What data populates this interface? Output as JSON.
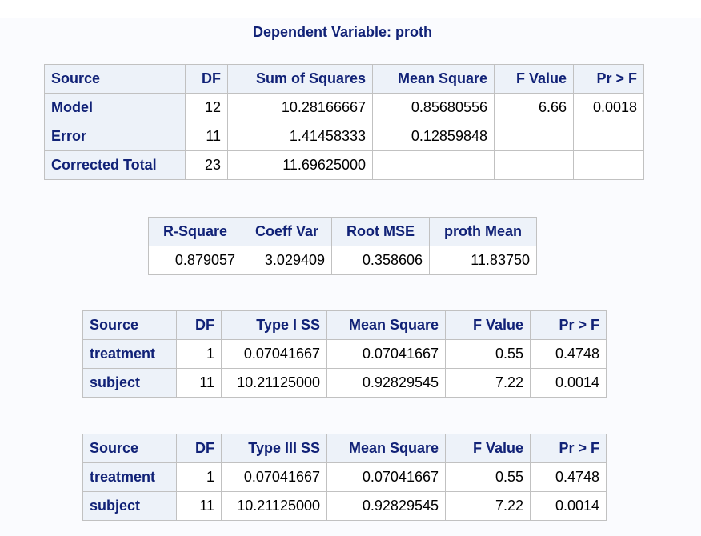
{
  "title": "Dependent Variable: proth",
  "anova": {
    "headers": [
      "Source",
      "DF",
      "Sum of Squares",
      "Mean Square",
      "F Value",
      "Pr > F"
    ],
    "rows": [
      {
        "source": "Model",
        "df": "12",
        "ss": "10.28166667",
        "ms": "0.85680556",
        "f": "6.66",
        "p": "0.0018"
      },
      {
        "source": "Error",
        "df": "11",
        "ss": "1.41458333",
        "ms": "0.12859848",
        "f": "",
        "p": ""
      },
      {
        "source": "Corrected Total",
        "df": "23",
        "ss": "11.69625000",
        "ms": "",
        "f": "",
        "p": ""
      }
    ]
  },
  "fit": {
    "headers": [
      "R-Square",
      "Coeff Var",
      "Root MSE",
      "proth Mean"
    ],
    "values": [
      "0.879057",
      "3.029409",
      "0.358606",
      "11.83750"
    ]
  },
  "type1": {
    "headers": [
      "Source",
      "DF",
      "Type I SS",
      "Mean Square",
      "F Value",
      "Pr > F"
    ],
    "rows": [
      {
        "source": "treatment",
        "df": "1",
        "ss": "0.07041667",
        "ms": "0.07041667",
        "f": "0.55",
        "p": "0.4748"
      },
      {
        "source": "subject",
        "df": "11",
        "ss": "10.21125000",
        "ms": "0.92829545",
        "f": "7.22",
        "p": "0.0014"
      }
    ]
  },
  "type3": {
    "headers": [
      "Source",
      "DF",
      "Type III SS",
      "Mean Square",
      "F Value",
      "Pr > F"
    ],
    "rows": [
      {
        "source": "treatment",
        "df": "1",
        "ss": "0.07041667",
        "ms": "0.07041667",
        "f": "0.55",
        "p": "0.4748"
      },
      {
        "source": "subject",
        "df": "11",
        "ss": "10.21125000",
        "ms": "0.92829545",
        "f": "7.22",
        "p": "0.0014"
      }
    ]
  },
  "colors": {
    "header_bg": "#edf2f9",
    "header_text": "#112277",
    "border": "#c1c1c1"
  }
}
